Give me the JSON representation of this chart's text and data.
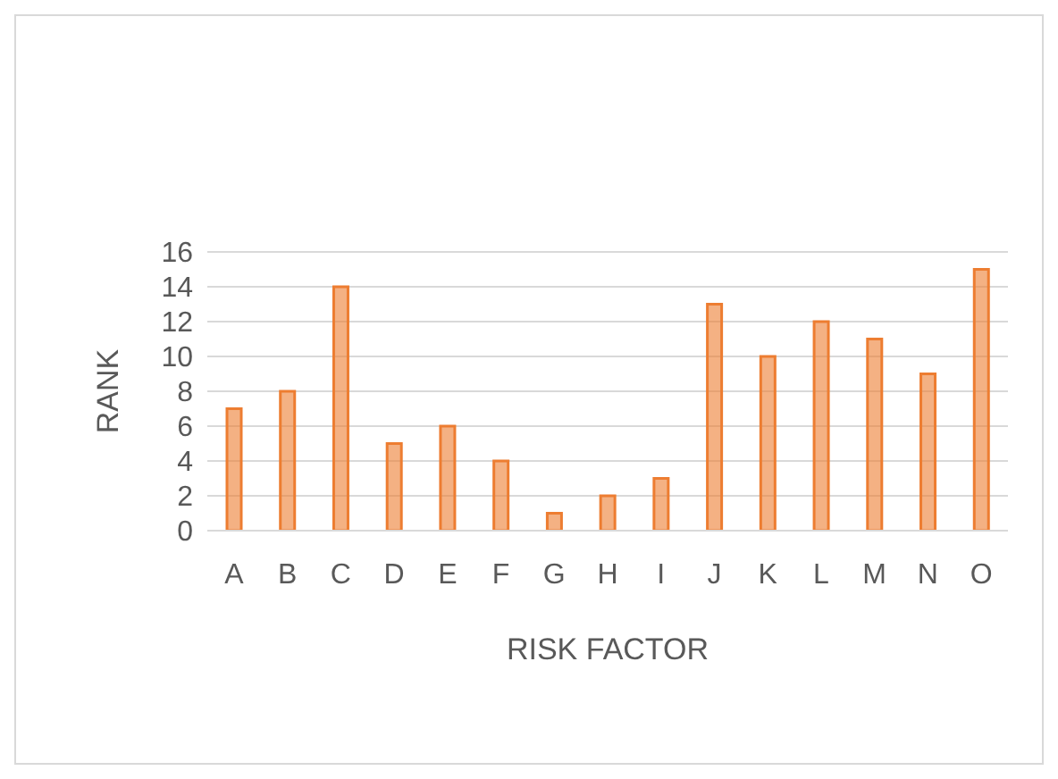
{
  "chart_data": {
    "type": "bar",
    "xlabel": "RISK FACTOR",
    "ylabel": "RANK",
    "categories": [
      "A",
      "B",
      "C",
      "D",
      "E",
      "F",
      "G",
      "H",
      "I",
      "J",
      "K",
      "L",
      "M",
      "N",
      "O"
    ],
    "values": [
      7,
      8,
      14,
      5,
      6,
      4,
      1,
      2,
      3,
      13,
      10,
      12,
      11,
      9,
      15
    ],
    "color": "#ed7d31",
    "ylim": [
      0,
      16
    ],
    "yticks": [
      0,
      2,
      4,
      6,
      8,
      10,
      12,
      14,
      16
    ],
    "grid": "y"
  }
}
